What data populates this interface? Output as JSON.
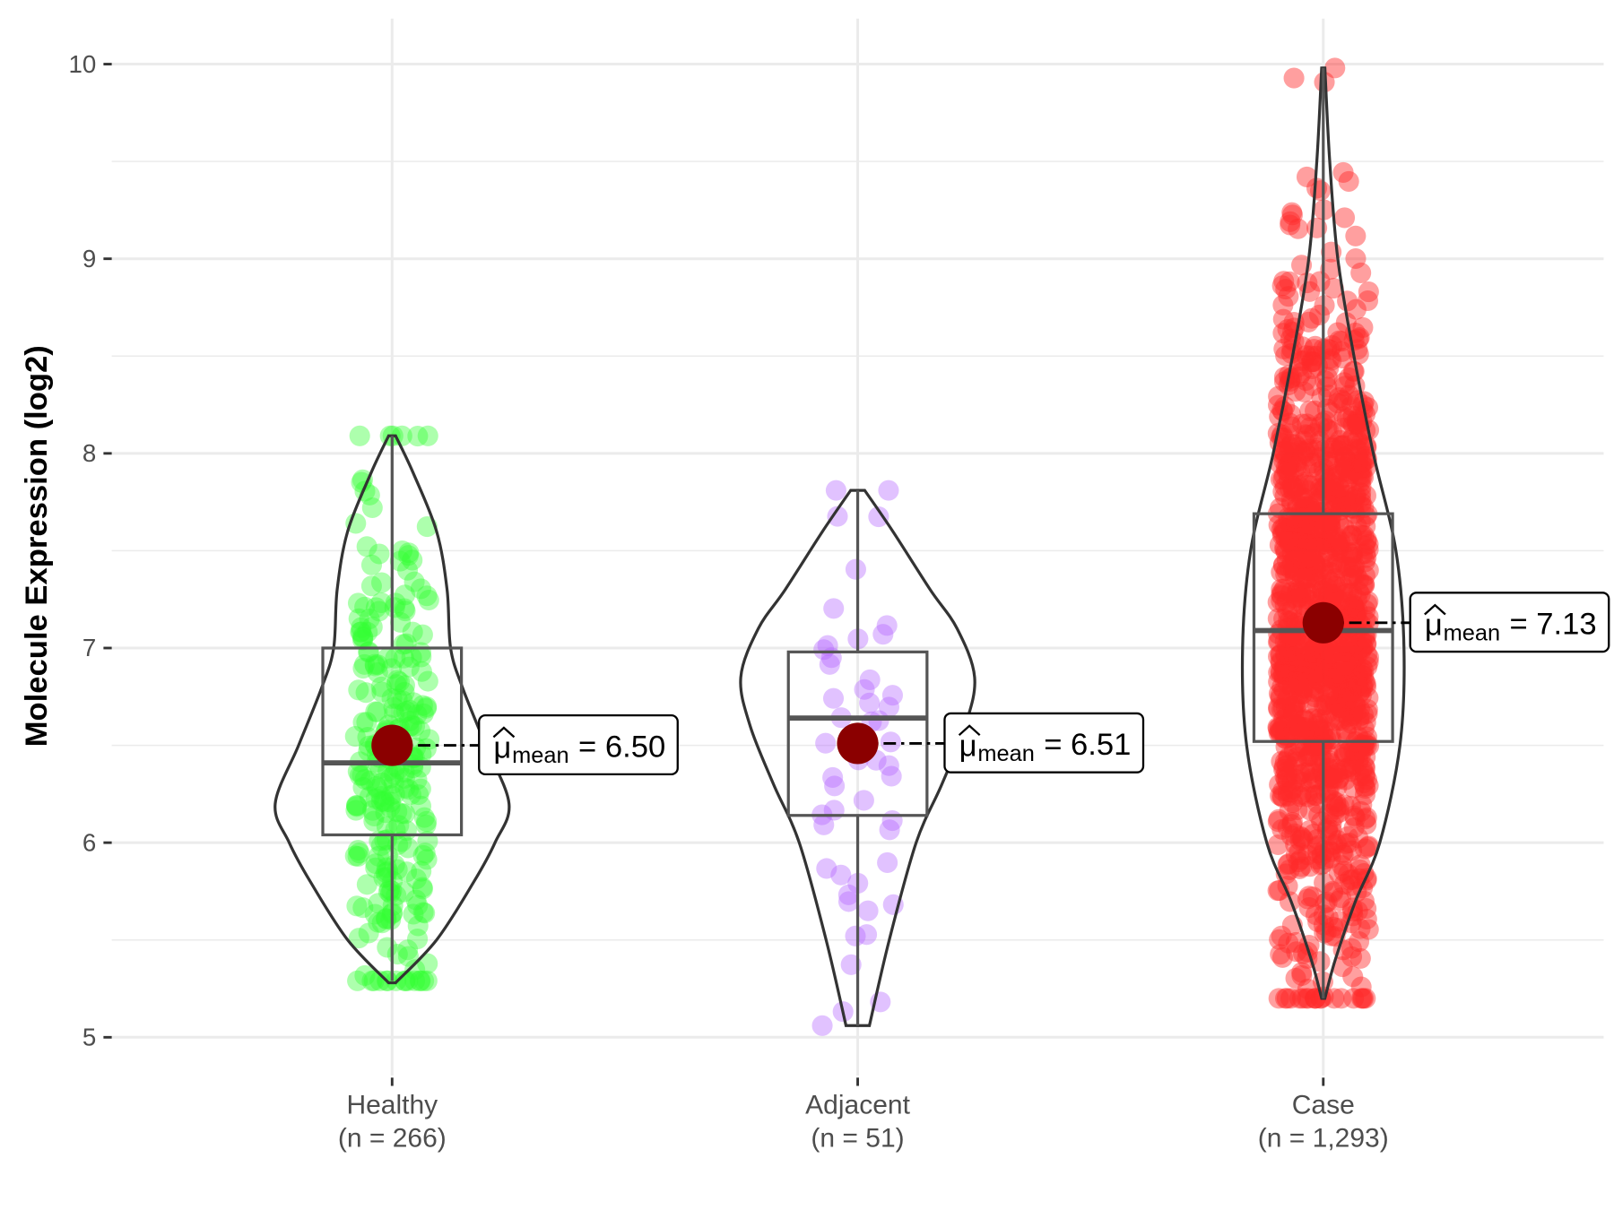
{
  "chart_data": {
    "type": "violin",
    "title": "",
    "xlabel": "",
    "ylabel": "Molecule Expression (log2)",
    "ylim": [
      4.8,
      10.25
    ],
    "yticks": [
      5,
      6,
      7,
      8,
      9,
      10
    ],
    "ytick_labels": [
      "5",
      "6",
      "7",
      "8",
      "9",
      "10"
    ],
    "grid": true,
    "groups": [
      {
        "name": "Healthy",
        "n_label": "(n = 266)",
        "n": 266,
        "color": "#33ff33",
        "box": {
          "min": 5.29,
          "q1": 6.04,
          "median": 6.41,
          "q3": 7.0,
          "max": 8.09
        },
        "mean": 6.5,
        "mean_label": "= 6.50",
        "density": [
          [
            5.28,
            0.03
          ],
          [
            5.5,
            0.38
          ],
          [
            5.8,
            0.7
          ],
          [
            6.0,
            0.88
          ],
          [
            6.2,
            1.0
          ],
          [
            6.5,
            0.8
          ],
          [
            6.8,
            0.6
          ],
          [
            7.0,
            0.5
          ],
          [
            7.3,
            0.47
          ],
          [
            7.6,
            0.38
          ],
          [
            7.9,
            0.18
          ],
          [
            8.09,
            0.03
          ]
        ]
      },
      {
        "name": "Adjacent",
        "n_label": "(n = 51)",
        "n": 51,
        "color": "#b366ff",
        "box": {
          "min": 5.06,
          "q1": 6.14,
          "median": 6.64,
          "q3": 6.98,
          "max": 7.81
        },
        "mean": 6.51,
        "mean_label": "= 6.51",
        "density": [
          [
            5.06,
            0.1
          ],
          [
            5.5,
            0.27
          ],
          [
            6.0,
            0.5
          ],
          [
            6.3,
            0.72
          ],
          [
            6.6,
            0.92
          ],
          [
            6.85,
            1.0
          ],
          [
            7.1,
            0.85
          ],
          [
            7.3,
            0.62
          ],
          [
            7.6,
            0.3
          ],
          [
            7.81,
            0.06
          ]
        ]
      },
      {
        "name": "Case",
        "n_label": "(n = 1,293)",
        "n": 1293,
        "color": "#ff2a2a",
        "box": {
          "min": 5.2,
          "q1": 6.52,
          "median": 7.09,
          "q3": 7.69,
          "max": 9.98
        },
        "mean": 7.13,
        "mean_label": "= 7.13",
        "density": [
          [
            5.2,
            0.02
          ],
          [
            5.4,
            0.15
          ],
          [
            5.7,
            0.4
          ],
          [
            6.0,
            0.7
          ],
          [
            6.5,
            0.95
          ],
          [
            7.0,
            1.0
          ],
          [
            7.5,
            0.9
          ],
          [
            8.0,
            0.62
          ],
          [
            8.5,
            0.38
          ],
          [
            9.0,
            0.18
          ],
          [
            9.5,
            0.08
          ],
          [
            9.98,
            0.02
          ]
        ]
      }
    ],
    "mean_symbol": "μ",
    "mean_subscript": "mean"
  }
}
